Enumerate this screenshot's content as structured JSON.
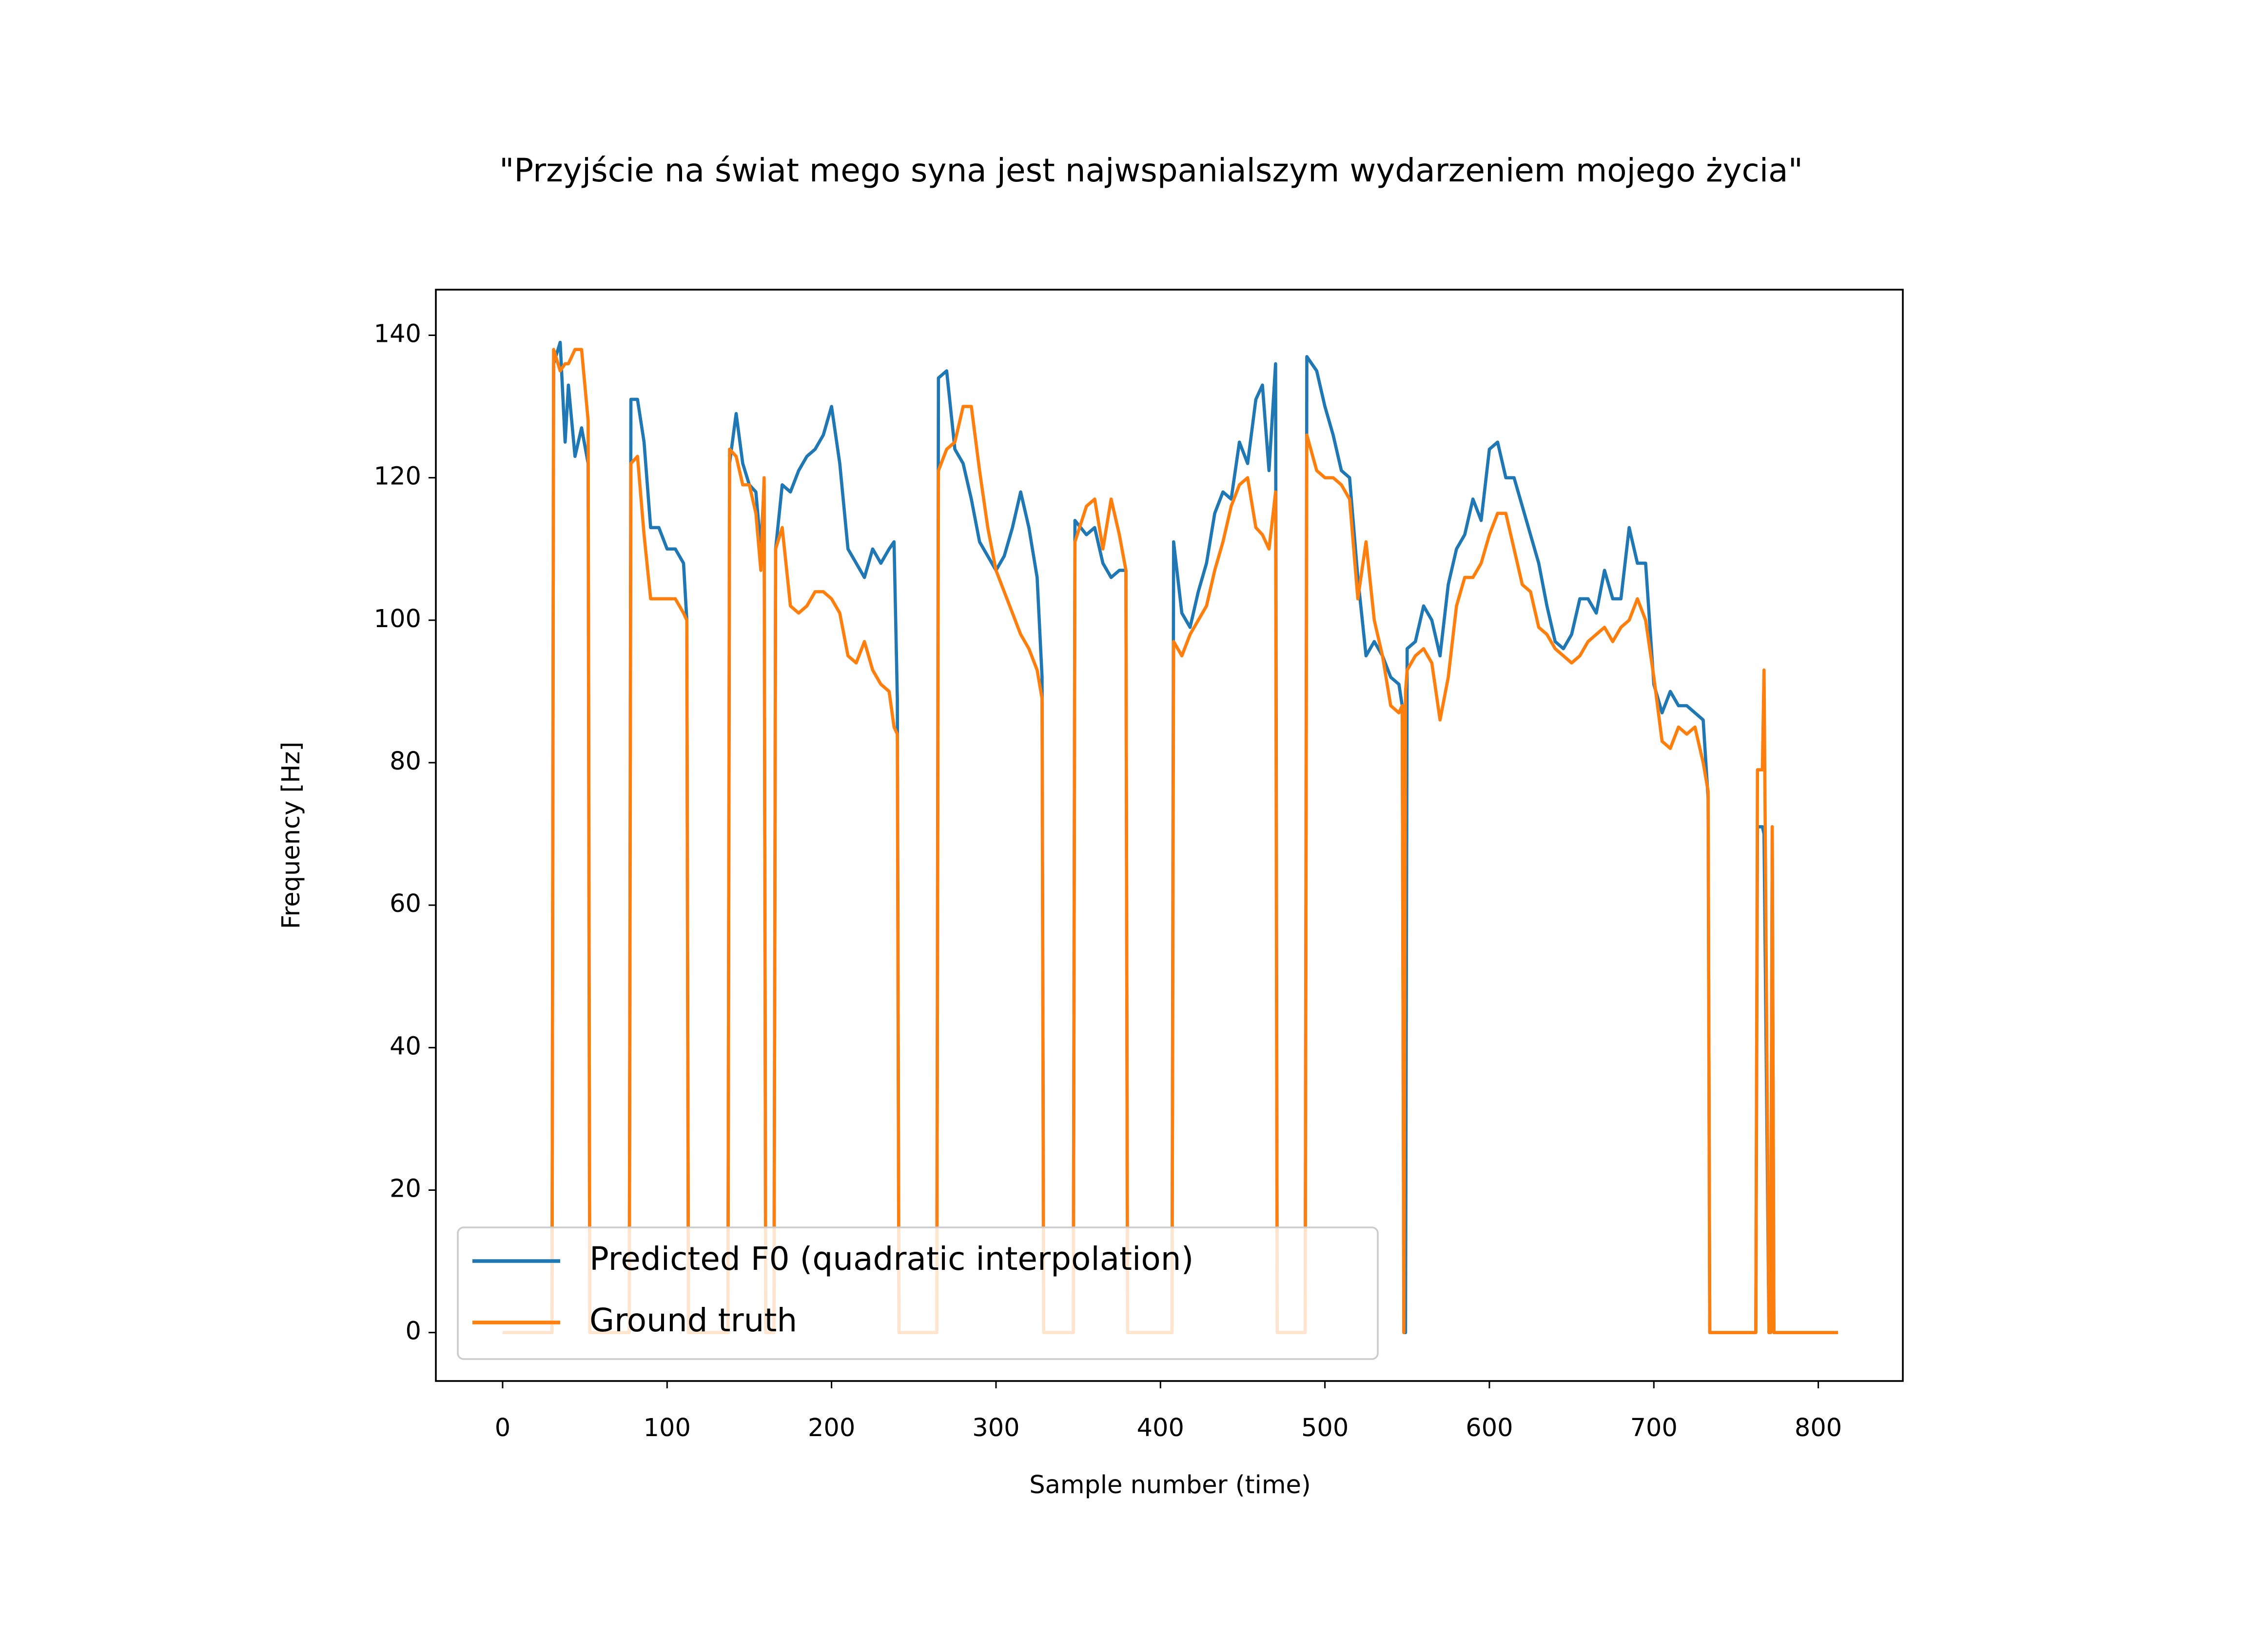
{
  "chart_data": {
    "type": "line",
    "title": "\"Przyjście na świat mego syna jest najwspanialszym wydarzeniem mojego życia\"",
    "xlabel": "Sample number (time)",
    "ylabel": "Frequency [Hz]",
    "xlim": [
      -40.6,
      851.4
    ],
    "ylim": [
      -6.8,
      146.4
    ],
    "xticks": [
      0,
      100,
      200,
      300,
      400,
      500,
      600,
      700,
      800
    ],
    "yticks": [
      0,
      20,
      40,
      60,
      80,
      100,
      120,
      140
    ],
    "legend": "lower left",
    "x": [
      0,
      30,
      31,
      35,
      38,
      40,
      44,
      48,
      52,
      53,
      77,
      78,
      82,
      86,
      90,
      95,
      100,
      105,
      110,
      112,
      113,
      137,
      138,
      142,
      146,
      150,
      154,
      157,
      159,
      160,
      165,
      166,
      170,
      175,
      180,
      185,
      190,
      195,
      200,
      205,
      210,
      215,
      220,
      225,
      230,
      235,
      238,
      240,
      241,
      264,
      265,
      270,
      275,
      280,
      285,
      290,
      295,
      300,
      305,
      310,
      315,
      320,
      325,
      328,
      329,
      347,
      348,
      355,
      360,
      365,
      370,
      375,
      379,
      380,
      407,
      408,
      413,
      418,
      423,
      428,
      433,
      438,
      443,
      448,
      453,
      458,
      462,
      466,
      470,
      471,
      488,
      489,
      495,
      500,
      505,
      510,
      515,
      520,
      525,
      530,
      535,
      540,
      545,
      547,
      548,
      549,
      550,
      555,
      560,
      565,
      570,
      575,
      580,
      585,
      590,
      595,
      600,
      605,
      610,
      615,
      620,
      625,
      630,
      635,
      640,
      645,
      650,
      655,
      660,
      665,
      670,
      675,
      680,
      685,
      690,
      695,
      700,
      705,
      710,
      715,
      720,
      725,
      730,
      733,
      734,
      762,
      763,
      766,
      767,
      770,
      771,
      772,
      773,
      812
    ],
    "series": [
      {
        "name": "Predicted F0 (quadratic interpolation)",
        "color": "#1f77b4",
        "values": [
          0,
          0,
          136,
          139,
          125,
          133,
          123,
          127,
          122,
          0,
          0,
          131,
          131,
          125,
          113,
          113,
          110,
          110,
          108,
          100,
          0,
          0,
          122,
          129,
          122,
          119,
          118,
          110,
          119,
          0,
          0,
          110,
          119,
          118,
          121,
          123,
          124,
          126,
          130,
          122,
          110,
          108,
          106,
          110,
          108,
          110,
          111,
          89,
          0,
          0,
          134,
          135,
          124,
          122,
          117,
          111,
          109,
          107,
          109,
          113,
          118,
          113,
          106,
          92,
          0,
          0,
          114,
          112,
          113,
          108,
          106,
          107,
          107,
          0,
          0,
          111,
          101,
          99,
          104,
          108,
          115,
          118,
          117,
          125,
          122,
          131,
          133,
          121,
          136,
          0,
          0,
          137,
          135,
          130,
          126,
          121,
          120,
          106,
          95,
          97,
          95,
          92,
          91,
          88,
          0,
          0,
          96,
          97,
          102,
          100,
          95,
          105,
          110,
          112,
          117,
          114,
          124,
          125,
          120,
          120,
          116,
          112,
          108,
          102,
          97,
          96,
          98,
          103,
          103,
          101,
          107,
          103,
          103,
          113,
          108,
          108,
          91,
          87,
          90,
          88,
          88,
          87,
          86,
          75,
          0,
          0,
          71,
          71,
          70,
          0,
          0,
          71,
          0,
          0
        ]
      },
      {
        "name": "Ground truth",
        "color": "#ff7f0e",
        "values": [
          0,
          0,
          138,
          135,
          136,
          136,
          138,
          138,
          128,
          0,
          0,
          122,
          123,
          112,
          103,
          103,
          103,
          103,
          101,
          100,
          0,
          0,
          124,
          123,
          119,
          119,
          115,
          107,
          120,
          0,
          0,
          110,
          113,
          102,
          101,
          102,
          104,
          104,
          103,
          101,
          95,
          94,
          97,
          93,
          91,
          90,
          85,
          84,
          0,
          0,
          121,
          124,
          125,
          130,
          130,
          121,
          113,
          107,
          104,
          101,
          98,
          96,
          93,
          89,
          0,
          0,
          111,
          116,
          117,
          110,
          117,
          112,
          107,
          0,
          0,
          97,
          95,
          98,
          100,
          102,
          107,
          111,
          116,
          119,
          120,
          113,
          112,
          110,
          118,
          0,
          0,
          126,
          121,
          120,
          120,
          119,
          117,
          103,
          111,
          100,
          95,
          88,
          87,
          88,
          0,
          90,
          93,
          95,
          96,
          94,
          86,
          92,
          102,
          106,
          106,
          108,
          112,
          115,
          115,
          110,
          105,
          104,
          99,
          98,
          96,
          95,
          94,
          95,
          97,
          98,
          99,
          97,
          99,
          100,
          103,
          100,
          92,
          83,
          82,
          85,
          84,
          85,
          80,
          76,
          0,
          0,
          79,
          79,
          93,
          0,
          0,
          71,
          0,
          0
        ]
      }
    ]
  }
}
